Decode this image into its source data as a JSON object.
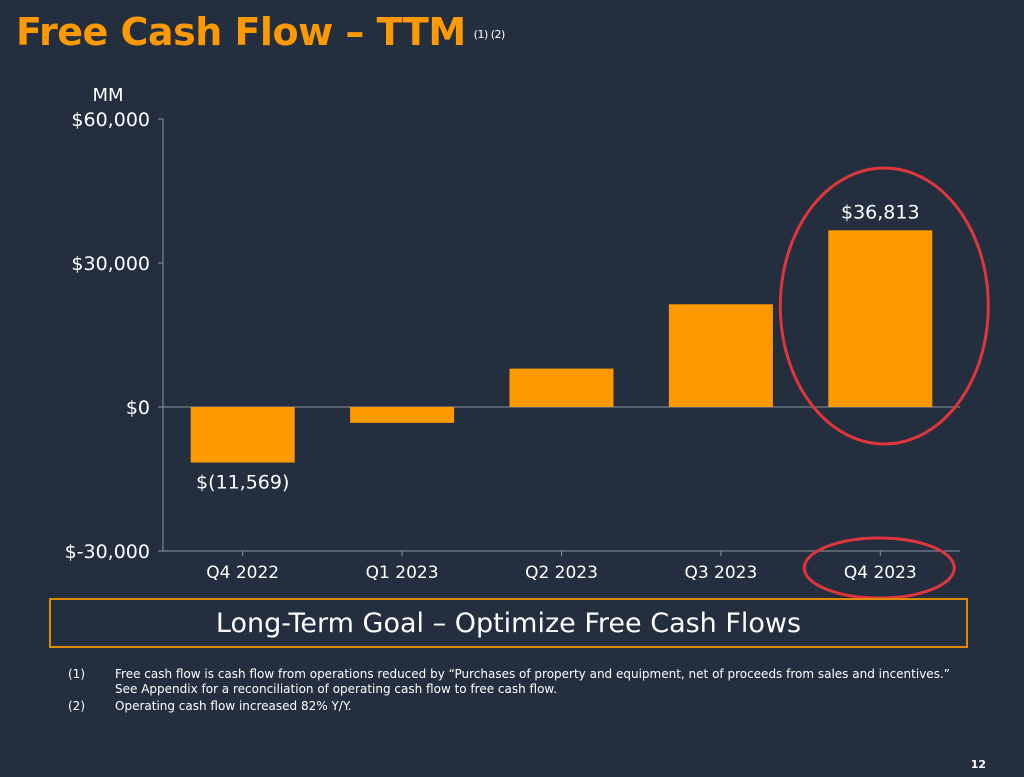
{
  "header": {
    "title": "Free Cash Flow – TTM",
    "title_note": "(1) (2)"
  },
  "chart_data": {
    "type": "bar",
    "unit_label": "MM",
    "categories": [
      "Q4 2022",
      "Q1 2023",
      "Q2 2023",
      "Q3 2023",
      "Q4 2023"
    ],
    "values": [
      -11569,
      -3300,
      8000,
      21400,
      36813
    ],
    "data_labels": [
      "$(11,569)",
      "",
      "",
      "",
      "$36,813"
    ],
    "ylim": [
      -30000,
      60000
    ],
    "yticks": [
      60000,
      30000,
      0,
      -30000
    ],
    "ytick_labels": [
      "$60,000",
      "$30,000",
      "$0",
      "$-30,000"
    ],
    "highlighted_category": "Q4 2023",
    "colors": {
      "bar": "#FF9900",
      "highlight_ring": "#E0353A",
      "axis": "#8A96A3",
      "background": "#232F3E"
    }
  },
  "goal": {
    "text": "Long-Term Goal – Optimize Free Cash Flows"
  },
  "footnotes": [
    {
      "num": "(1)",
      "text": "Free cash flow is cash flow from operations reduced by “Purchases of property and equipment, net of proceeds from sales and incentives.” See Appendix for a reconciliation of operating cash flow to free cash flow."
    },
    {
      "num": "(2)",
      "text": "Operating cash flow increased 82% Y/Y."
    }
  ],
  "page_number": "12"
}
